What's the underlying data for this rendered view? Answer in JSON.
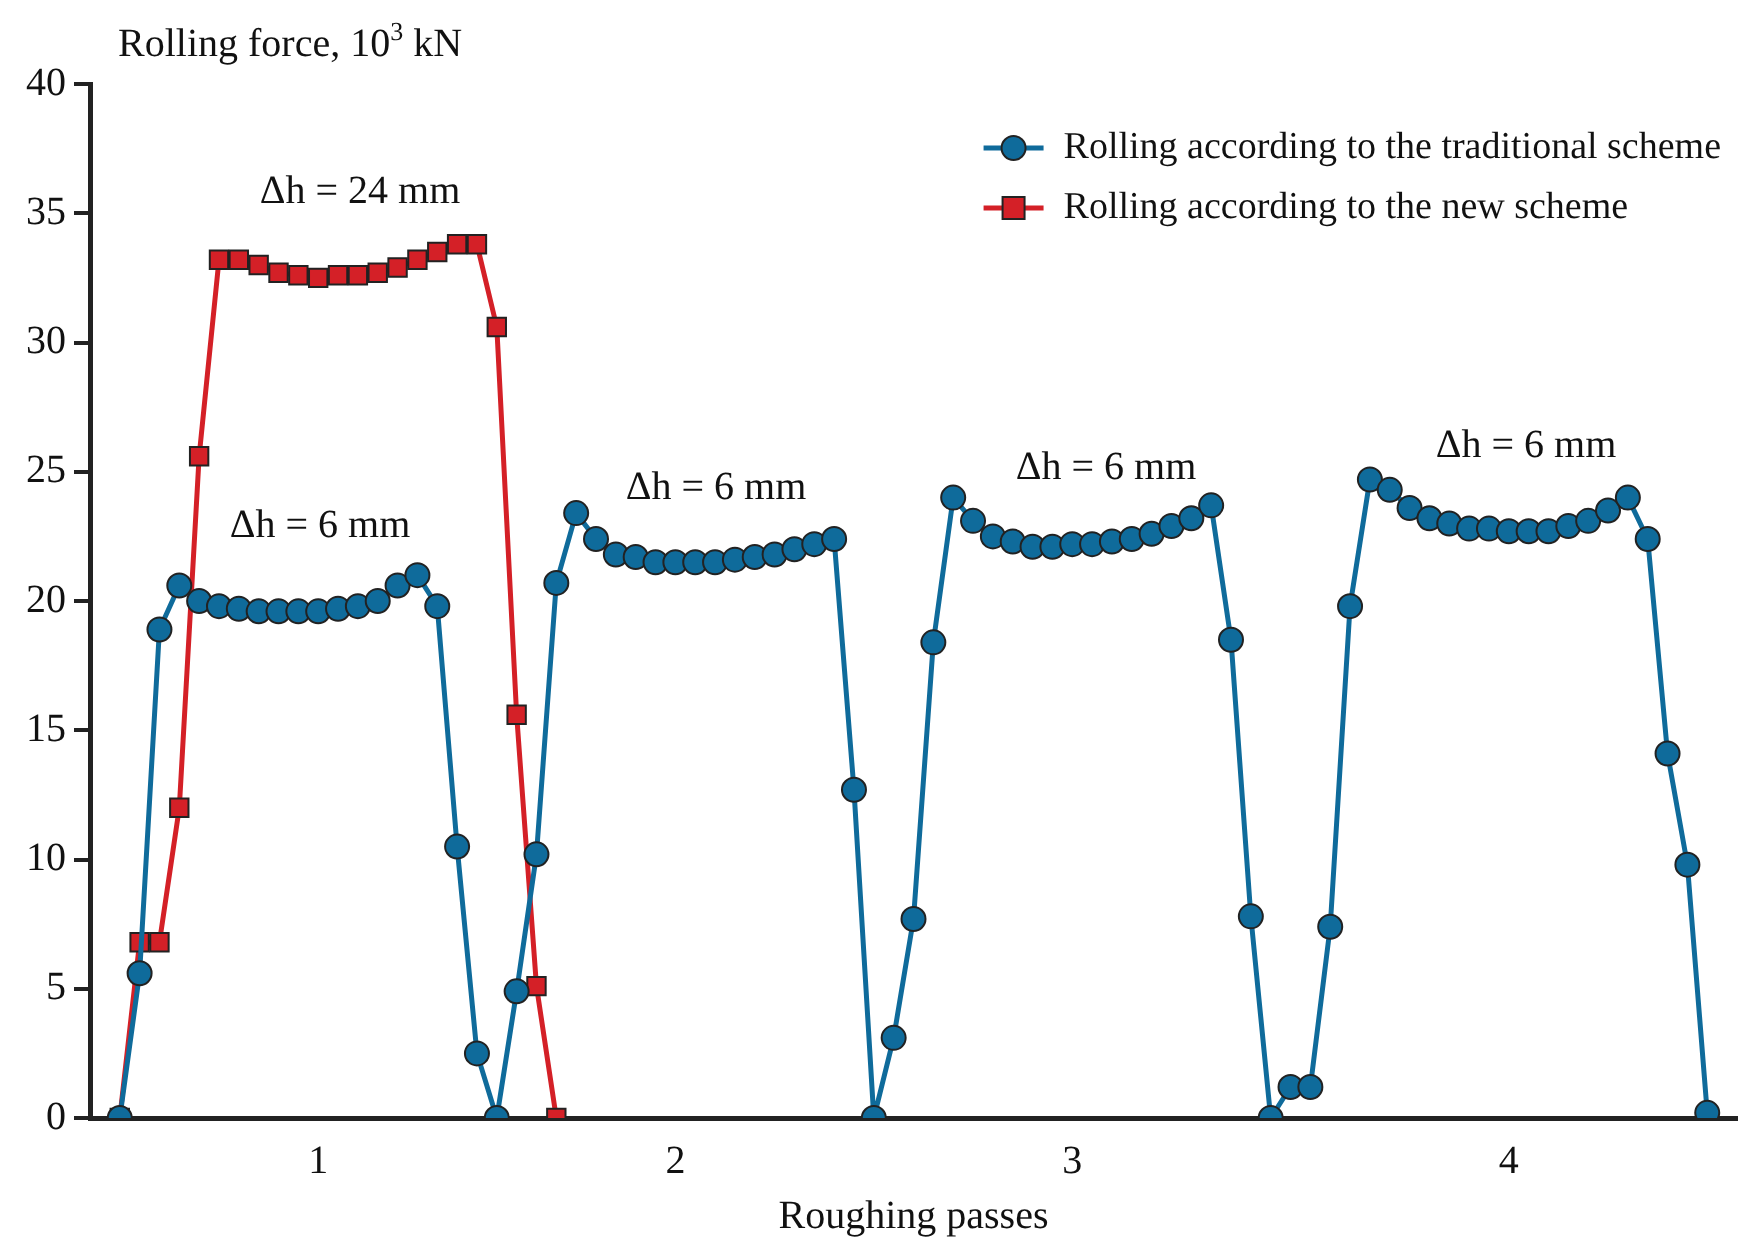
{
  "chart_data": {
    "type": "line",
    "ylabel": "Rolling force, 10$^{3}$ kN",
    "xlabel": "Roughing passes",
    "categories": [
      null,
      null,
      null,
      null,
      null,
      null,
      null,
      null,
      null,
      null,
      null,
      "1",
      null,
      null,
      null,
      null,
      null,
      null,
      null,
      null,
      null,
      null,
      null,
      null,
      null,
      null,
      null,
      null,
      null,
      "2",
      null,
      null,
      null,
      null,
      null,
      null,
      null,
      null,
      null,
      null,
      null,
      null,
      null,
      null,
      null,
      null,
      null,
      null,
      null,
      "3",
      null,
      null,
      null,
      null,
      null,
      null,
      null,
      null,
      null,
      null,
      null,
      null,
      null,
      null,
      null,
      null,
      null,
      null,
      null,
      null,
      null,
      "4",
      null,
      null,
      null,
      null,
      null,
      null,
      null,
      null,
      null,
      null,
      null
    ],
    "ylim": [
      0,
      40
    ],
    "yticks": [
      0,
      5,
      10,
      15,
      20,
      25,
      30,
      35,
      40
    ],
    "grid": false,
    "legend": "top right",
    "line_style": "solid",
    "series": [
      {
        "name": "Rolling according to the traditional scheme",
        "color": "#0f6b9b",
        "marker": "circle",
        "values": [
          null,
          0,
          5.6,
          18.9,
          20.6,
          20.0,
          19.8,
          19.7,
          19.6,
          19.6,
          19.6,
          19.6,
          19.7,
          19.8,
          20.0,
          20.6,
          21.0,
          19.8,
          10.5,
          2.5,
          0,
          4.9,
          10.2,
          20.7,
          23.4,
          22.4,
          21.8,
          21.7,
          21.5,
          21.5,
          21.5,
          21.5,
          21.6,
          21.7,
          21.8,
          22.0,
          22.2,
          22.4,
          12.7,
          0,
          3.1,
          7.7,
          18.4,
          24.0,
          23.1,
          22.5,
          22.3,
          22.1,
          22.1,
          22.2,
          22.2,
          22.3,
          22.4,
          22.6,
          22.9,
          23.2,
          23.7,
          18.5,
          7.8,
          0,
          1.2,
          1.2,
          7.4,
          19.8,
          24.7,
          24.3,
          23.6,
          23.2,
          23.0,
          22.8,
          22.8,
          22.7,
          22.7,
          22.7,
          22.9,
          23.1,
          23.5,
          24.0,
          22.4,
          14.1,
          9.8,
          0.2,
          null
        ]
      },
      {
        "name": "Rolling according to the new scheme",
        "color": "#d42027",
        "marker": "square",
        "values": [
          null,
          0,
          6.8,
          6.8,
          12.0,
          25.6,
          33.2,
          33.2,
          33.0,
          32.7,
          32.6,
          32.5,
          32.6,
          32.6,
          32.7,
          32.9,
          33.2,
          33.5,
          33.8,
          33.8,
          30.6,
          15.6,
          5.1,
          0,
          null,
          null,
          null,
          null,
          null,
          null,
          null,
          null,
          null,
          null,
          null,
          null,
          null,
          null,
          null,
          null,
          null,
          null,
          null,
          null,
          null,
          null,
          null,
          null,
          null,
          null,
          null,
          null,
          null,
          null,
          null,
          null,
          null,
          null,
          null,
          null,
          null,
          null,
          null,
          null,
          null,
          null,
          null,
          null,
          null,
          null,
          null,
          null,
          null,
          null,
          null,
          null,
          null,
          null,
          null,
          null,
          null,
          null,
          null
        ]
      }
    ],
    "annotations": [
      "Δh = 24 mm",
      "Δh = 6 mm",
      "Δh = 6 mm",
      "Δh = 6 mm",
      "Δh = 6 mm"
    ]
  }
}
